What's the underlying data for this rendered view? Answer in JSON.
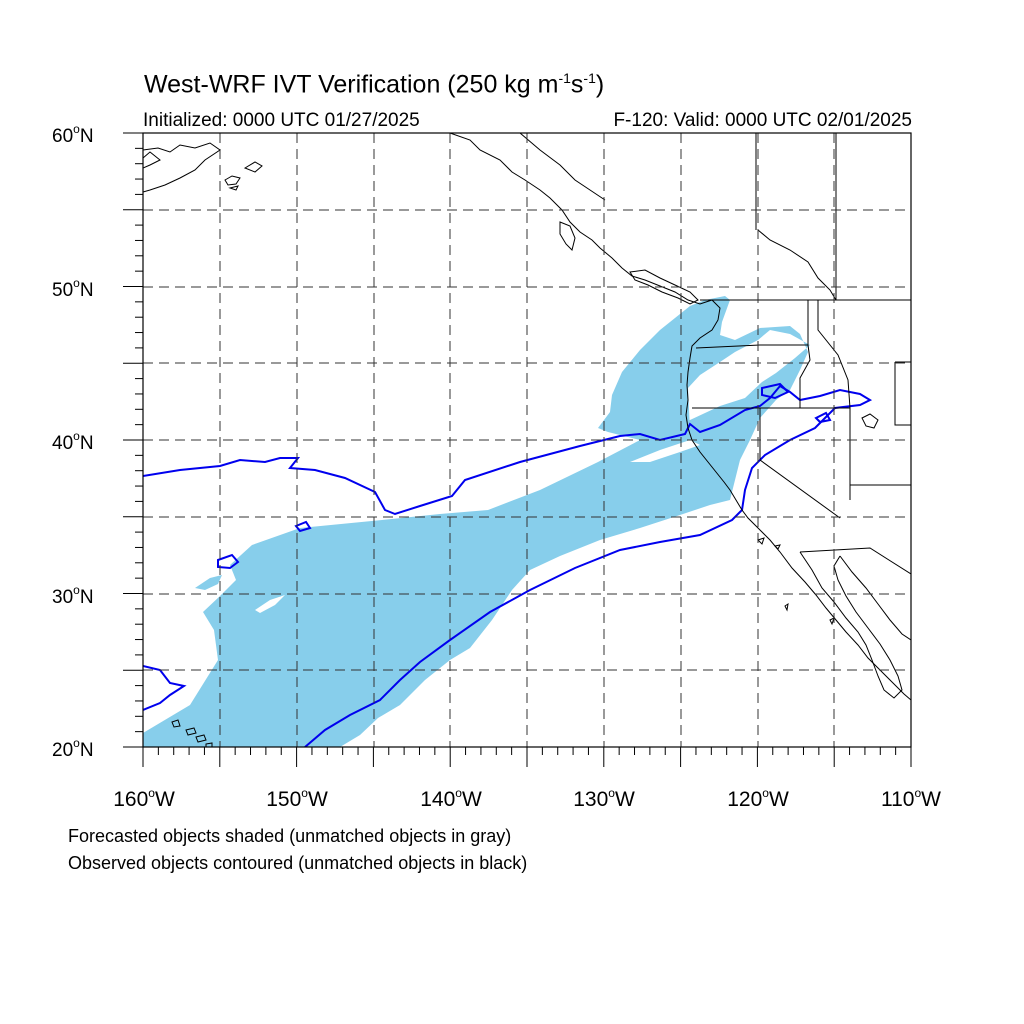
{
  "title": {
    "main": "West-WRF IVT Verification (250 kg m",
    "sup1": "-1",
    "mid": "s",
    "sup2": "-1",
    "end": ")"
  },
  "subtitle": {
    "left": "Initialized: 0000 UTC 01/27/2025",
    "right": "F-120: Valid: 0000 UTC 02/01/2025"
  },
  "lat_labels": [
    {
      "value": "60",
      "hemi": "N"
    },
    {
      "value": "50",
      "hemi": "N"
    },
    {
      "value": "40",
      "hemi": "N"
    },
    {
      "value": "30",
      "hemi": "N"
    },
    {
      "value": "20",
      "hemi": "N"
    }
  ],
  "lon_labels": [
    {
      "value": "160",
      "hemi": "W"
    },
    {
      "value": "150",
      "hemi": "W"
    },
    {
      "value": "140",
      "hemi": "W"
    },
    {
      "value": "130",
      "hemi": "W"
    },
    {
      "value": "120",
      "hemi": "W"
    },
    {
      "value": "110",
      "hemi": "W"
    }
  ],
  "footnotes": {
    "line1": "Forecasted objects shaded (unmatched objects in gray)",
    "line2": "Observed objects contoured (unmatched objects in black)"
  },
  "colors": {
    "forecast_fill": "#87ceeb",
    "observed_contour": "#0000ee",
    "grid": "#333333",
    "coast": "#000000"
  },
  "map": {
    "lat_range": [
      20,
      60
    ],
    "lon_range": [
      -160,
      -110
    ],
    "grid_spacing_deg": 5
  }
}
